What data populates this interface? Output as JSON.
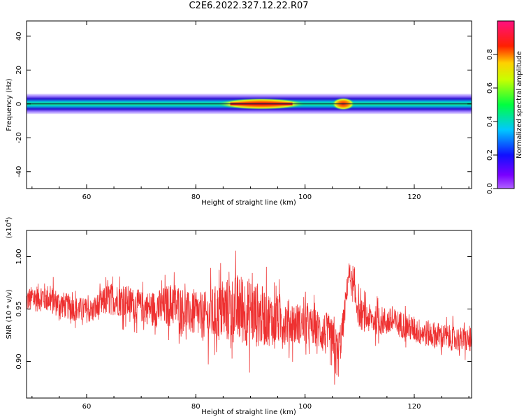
{
  "title": "C2E6.2022.327.12.22.R07",
  "colors": {
    "snr_line": "#ee3030",
    "axis": "#000000",
    "spectrum_core": "#ee1010",
    "spectrum_mid": "#19e070",
    "spectrum_edge": "#2a10d0"
  },
  "chart_data": [
    {
      "type": "heatmap",
      "xlabel": "Height of straight line (km)",
      "ylabel": "Frequency (Hz)",
      "xlim": [
        49,
        130.5
      ],
      "ylim": [
        -50,
        49
      ],
      "xticks": [
        60,
        80,
        100,
        120
      ],
      "yticks": [
        40,
        20,
        0,
        -20,
        -40
      ],
      "colorbar": {
        "label": "Normalized spectral amplitude",
        "range": [
          0,
          1
        ],
        "ticks": [
          "0.0",
          "0.2",
          "0.4",
          "0.6",
          "0.8"
        ],
        "colormap": "rainbow (purple-blue-cyan-green-yellow-red-magenta)"
      },
      "description_values": {
        "band_center_hz": 0,
        "band_halfwidth_hz": 3,
        "peak_region_km": [
          84,
          100
        ],
        "secondary_peak_km": 107
      }
    },
    {
      "type": "line",
      "xlabel": "Height of straight line (km)",
      "ylabel": "SNR (10 * v/v)",
      "y_multiplier": "(x10",
      "y_multiplier_exp": "4",
      "y_multiplier_close": ")",
      "xlim": [
        49,
        130.5
      ],
      "ylim": [
        0.865,
        1.025
      ],
      "xticks": [
        60,
        80,
        100,
        120
      ],
      "yticks": [
        "1.00",
        "0.95",
        "0.90"
      ],
      "ytick_values": [
        1.0,
        0.95,
        0.9
      ],
      "series": [
        {
          "x": [
            49,
            52,
            55,
            58,
            61,
            64,
            67,
            70,
            73,
            76,
            79,
            82,
            85,
            88,
            91,
            94,
            97,
            100,
            102,
            104,
            105,
            106,
            107,
            108,
            109,
            110,
            112,
            115,
            118,
            121,
            124,
            127,
            130
          ],
          "y": [
            0.958,
            0.962,
            0.955,
            0.95,
            0.948,
            0.96,
            0.958,
            0.952,
            0.95,
            0.955,
            0.945,
            0.942,
            0.948,
            0.95,
            0.945,
            0.94,
            0.938,
            0.935,
            0.932,
            0.925,
            0.915,
            0.905,
            0.935,
            0.985,
            0.965,
            0.945,
            0.94,
            0.938,
            0.935,
            0.928,
            0.925,
            0.922,
            0.92
          ],
          "noise_amplitude": [
            0.012,
            0.014,
            0.013,
            0.012,
            0.012,
            0.015,
            0.016,
            0.015,
            0.018,
            0.022,
            0.02,
            0.025,
            0.03,
            0.035,
            0.032,
            0.025,
            0.022,
            0.018,
            0.018,
            0.022,
            0.025,
            0.025,
            0.015,
            0.012,
            0.015,
            0.015,
            0.014,
            0.014,
            0.013,
            0.013,
            0.013,
            0.012,
            0.012
          ]
        }
      ]
    }
  ]
}
